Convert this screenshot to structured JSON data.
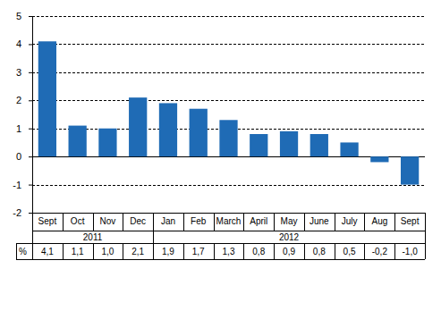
{
  "chart_data": {
    "type": "bar",
    "categories": [
      "Sept",
      "Oct",
      "Nov",
      "Dec",
      "Jan",
      "Feb",
      "March",
      "April",
      "May",
      "June",
      "July",
      "Aug",
      "Sept"
    ],
    "values": [
      4.1,
      1.1,
      1.0,
      2.1,
      1.9,
      1.7,
      1.3,
      0.8,
      0.9,
      0.8,
      0.5,
      -0.2,
      -1.0
    ],
    "value_labels": [
      "4,1",
      "1,1",
      "1,0",
      "2,1",
      "1,9",
      "1,7",
      "1,3",
      "0,8",
      "0,9",
      "0,8",
      "0,5",
      "-0,2",
      "-1,0"
    ],
    "data_labels": true,
    "table_header": "%",
    "year_groups": [
      {
        "name": "2011",
        "count": 4
      },
      {
        "name": "2012",
        "count": 9
      }
    ],
    "color": "#1f6bb5",
    "ylim": [
      -2,
      5
    ],
    "yticks": [
      -2,
      -1,
      0,
      1,
      2,
      3,
      4,
      5
    ],
    "grid": true
  }
}
